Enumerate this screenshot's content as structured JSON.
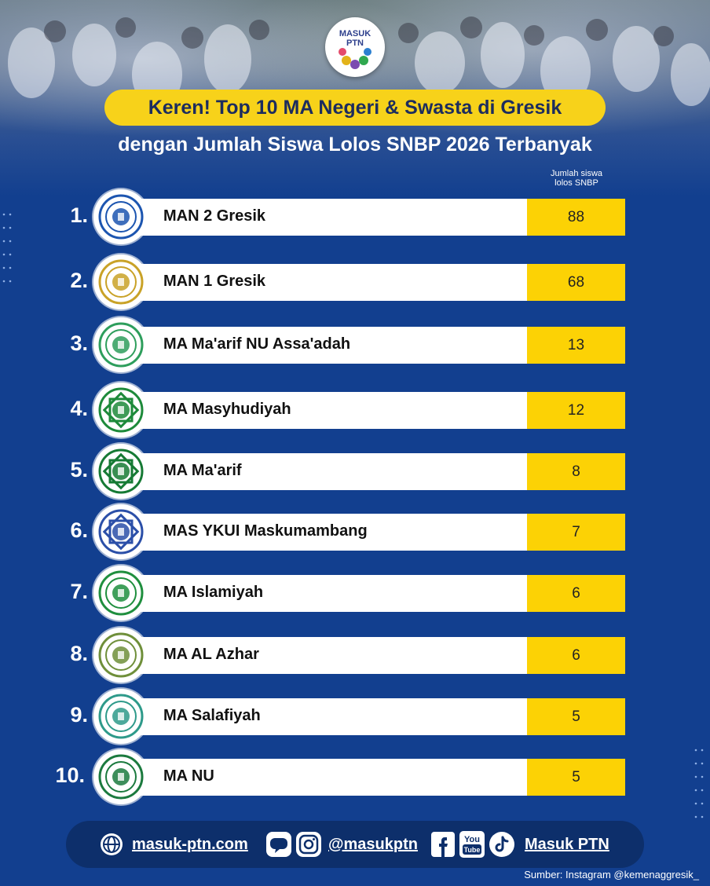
{
  "brand": {
    "logo_line1": "MASUK",
    "logo_line2": "PTN"
  },
  "title": "Keren! Top 10 MA Negeri & Swasta di Gresik",
  "subtitle": "dengan Jumlah Siswa Lolos SNBP 2026 Terbanyak",
  "column_header": {
    "line1": "Jumlah siswa",
    "line2": "lolos SNBP"
  },
  "rows": [
    {
      "rank": "1.",
      "name": "MAN 2 Gresik",
      "count": "88",
      "badge_color": "#1c55b0"
    },
    {
      "rank": "2.",
      "name": "MAN 1 Gresik",
      "count": "68",
      "badge_color": "#c9a227"
    },
    {
      "rank": "3.",
      "name": "MA Ma'arif  NU Assa'adah",
      "count": "13",
      "badge_color": "#2e9e5c"
    },
    {
      "rank": "4.",
      "name": "MA Masyhudiyah",
      "count": "12",
      "badge_color": "#1d8a3a"
    },
    {
      "rank": "5.",
      "name": "MA Ma'arif",
      "count": "8",
      "badge_color": "#167a34"
    },
    {
      "rank": "6.",
      "name": "MAS YKUI Maskumambang",
      "count": "7",
      "badge_color": "#2b4fa8"
    },
    {
      "rank": "7.",
      "name": "MA Islamiyah",
      "count": "6",
      "badge_color": "#1f8f3e"
    },
    {
      "rank": "8.",
      "name": "MA AL Azhar",
      "count": "6",
      "badge_color": "#6f8f3a"
    },
    {
      "rank": "9.",
      "name": "MA Salafiyah",
      "count": "5",
      "badge_color": "#2e9a8a"
    },
    {
      "rank": "10.",
      "name": "MA NU",
      "count": "5",
      "badge_color": "#1b7a3e"
    }
  ],
  "footer": {
    "website": "masuk-ptn.com",
    "handle": "@masukptn",
    "channel": "Masuk PTN"
  },
  "source": "Sumber: Instagram @kemenaggresik_",
  "colors": {
    "background": "#123f8f",
    "accent": "#fcd205",
    "title_pill": "#f7d21a"
  }
}
